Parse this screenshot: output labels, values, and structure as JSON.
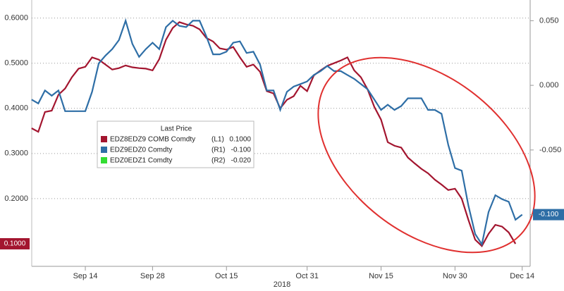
{
  "chart_data": {
    "type": "line",
    "x_axis_label": "2018",
    "categories": [
      null,
      null,
      null,
      null,
      null,
      null,
      null,
      null,
      "Sep 14",
      null,
      null,
      null,
      null,
      null,
      null,
      null,
      null,
      null,
      "Sep 28",
      null,
      null,
      null,
      null,
      null,
      null,
      null,
      null,
      null,
      null,
      "Oct 15",
      null,
      null,
      null,
      null,
      null,
      null,
      null,
      null,
      null,
      null,
      null,
      "Oct 31",
      null,
      null,
      null,
      null,
      null,
      null,
      null,
      null,
      null,
      null,
      "Nov 15",
      null,
      null,
      null,
      null,
      null,
      null,
      null,
      null,
      null,
      null,
      "Nov 30",
      null,
      null,
      null,
      null,
      null,
      null,
      null,
      null,
      null,
      "Dec 14",
      null
    ],
    "ylim": [
      0.05,
      0.64
    ],
    "yticks": [
      {
        "value": 0.6,
        "label": "0.6000"
      },
      {
        "value": 0.5,
        "label": "0.5000"
      },
      {
        "value": 0.4,
        "label": "0.4000"
      },
      {
        "value": 0.3,
        "label": "0.3000"
      },
      {
        "value": 0.2,
        "label": "0.2000"
      }
    ],
    "y2lim": [
      -0.14,
      0.066
    ],
    "y2ticks": [
      {
        "value": 0.05,
        "label": "0.050"
      },
      {
        "value": 0,
        "label": "0.000"
      },
      {
        "value": -0.05,
        "label": "-0.050"
      },
      {
        "value": -0.1,
        "label": "-0.100"
      }
    ],
    "grid": true,
    "legend_title": "Last Price",
    "series": [
      {
        "name": "EDZ8EDZ9 COMB Comdty",
        "tag": "(L1)",
        "last_label": "0.1000",
        "color": "#a3152f",
        "axis": "y",
        "values": [
          0.356,
          0.348,
          0.392,
          0.395,
          0.43,
          0.444,
          0.469,
          0.488,
          0.492,
          0.513,
          0.508,
          0.497,
          0.486,
          0.489,
          0.495,
          0.491,
          0.489,
          0.488,
          0.484,
          0.509,
          0.552,
          0.578,
          0.591,
          0.586,
          0.583,
          0.575,
          0.556,
          0.548,
          0.533,
          0.53,
          0.536,
          0.513,
          0.492,
          0.497,
          0.481,
          0.438,
          0.433,
          0.4,
          0.419,
          0.427,
          0.45,
          0.438,
          0.473,
          0.484,
          0.494,
          0.5,
          0.506,
          0.513,
          0.484,
          0.469,
          0.442,
          0.403,
          0.375,
          0.325,
          0.317,
          0.313,
          0.291,
          0.278,
          0.266,
          0.256,
          0.242,
          0.231,
          0.219,
          0.222,
          0.2,
          0.153,
          0.109,
          0.095,
          0.122,
          0.142,
          0.138,
          0.125,
          0.1,
          null,
          null
        ]
      },
      {
        "name": "EDZ9EDZ0 Comdty",
        "tag": "(R1)",
        "last_label": "-0.100",
        "color": "#2e6ea6",
        "axis": "y2",
        "values": [
          -0.011,
          -0.014,
          -0.004,
          -0.008,
          -0.004,
          -0.02,
          -0.02,
          -0.02,
          -0.02,
          -0.005,
          0.017,
          0.023,
          0.028,
          0.035,
          0.05,
          0.032,
          0.022,
          0.028,
          0.033,
          0.028,
          0.045,
          0.05,
          0.046,
          0.045,
          0.05,
          0.05,
          0.038,
          0.024,
          0.024,
          0.026,
          0.033,
          0.034,
          0.025,
          0.026,
          0.016,
          -0.004,
          -0.004,
          -0.019,
          -0.005,
          -0.001,
          0.001,
          0.003,
          0.008,
          0.011,
          0.015,
          0.011,
          0.011,
          0.008,
          0.005,
          0.001,
          -0.003,
          -0.011,
          -0.019,
          -0.015,
          -0.019,
          -0.016,
          -0.01,
          -0.01,
          -0.01,
          -0.019,
          -0.019,
          -0.022,
          -0.046,
          -0.064,
          -0.066,
          -0.093,
          -0.115,
          -0.123,
          -0.098,
          -0.085,
          -0.088,
          -0.09,
          -0.104,
          -0.1,
          null
        ]
      }
    ],
    "legend_extra": [
      {
        "name": "EDZ0EDZ1 Comdty",
        "tag": "(R2)",
        "last_label": "-0.020",
        "color": "#33dd33"
      }
    ]
  }
}
